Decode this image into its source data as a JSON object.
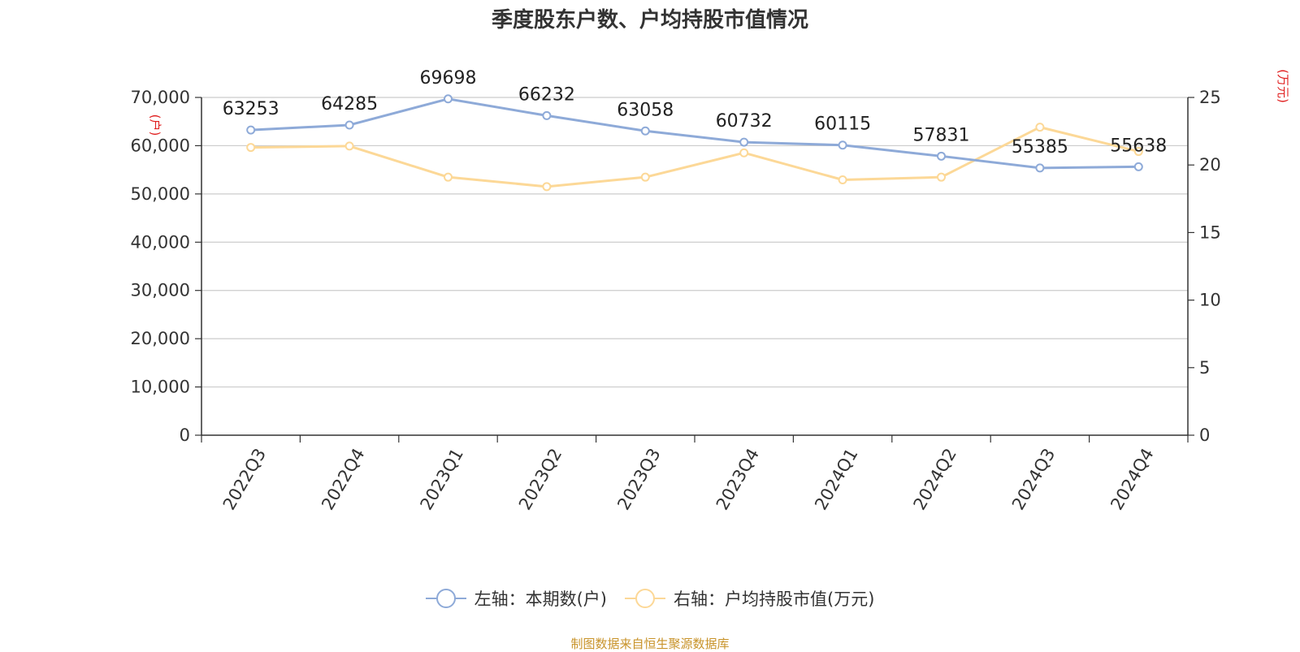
{
  "title": "季度股东户数、户均持股市值情况",
  "source": "制图数据来自恒生聚源数据库",
  "colors": {
    "holders": "#8eaad8",
    "value": "#fcd897",
    "axis": "#333333",
    "grid": "#cccccc",
    "unit": "#e02020"
  },
  "legend": [
    {
      "label": "左轴：本期数(户)"
    },
    {
      "label": "右轴：户均持股市值(万元)"
    }
  ],
  "chart_data": {
    "type": "line",
    "categories": [
      "2022Q3",
      "2022Q4",
      "2023Q1",
      "2023Q2",
      "2023Q3",
      "2023Q4",
      "2024Q1",
      "2024Q2",
      "2024Q3",
      "2024Q4"
    ],
    "series": [
      {
        "name": "左轴：本期数(户)",
        "axis": "left",
        "values": [
          63253,
          64285,
          69698,
          66232,
          63058,
          60732,
          60115,
          57831,
          55385,
          55638
        ],
        "data_labels": [
          "63253",
          "64285",
          "69698",
          "66232",
          "63058",
          "60732",
          "60115",
          "57831",
          "55385",
          "55638"
        ]
      },
      {
        "name": "右轴：户均持股市值(万元)",
        "axis": "right",
        "values": [
          21.3,
          21.4,
          19.1,
          18.4,
          19.1,
          20.9,
          18.9,
          19.1,
          22.8,
          21.0
        ]
      }
    ],
    "left_axis": {
      "unit": "(户)",
      "ylim": [
        0,
        70000
      ],
      "ticks": [
        0,
        10000,
        20000,
        30000,
        40000,
        50000,
        60000,
        70000
      ],
      "tick_labels": [
        "0",
        "10,000",
        "20,000",
        "30,000",
        "40,000",
        "50,000",
        "60,000",
        "70,000"
      ]
    },
    "right_axis": {
      "unit": "(万元)",
      "ylim": [
        0,
        25
      ],
      "ticks": [
        0,
        5,
        10,
        15,
        20,
        25
      ],
      "tick_labels": [
        "0",
        "5",
        "10",
        "15",
        "20",
        "25"
      ]
    },
    "grid": true,
    "legend_position": "bottom"
  }
}
